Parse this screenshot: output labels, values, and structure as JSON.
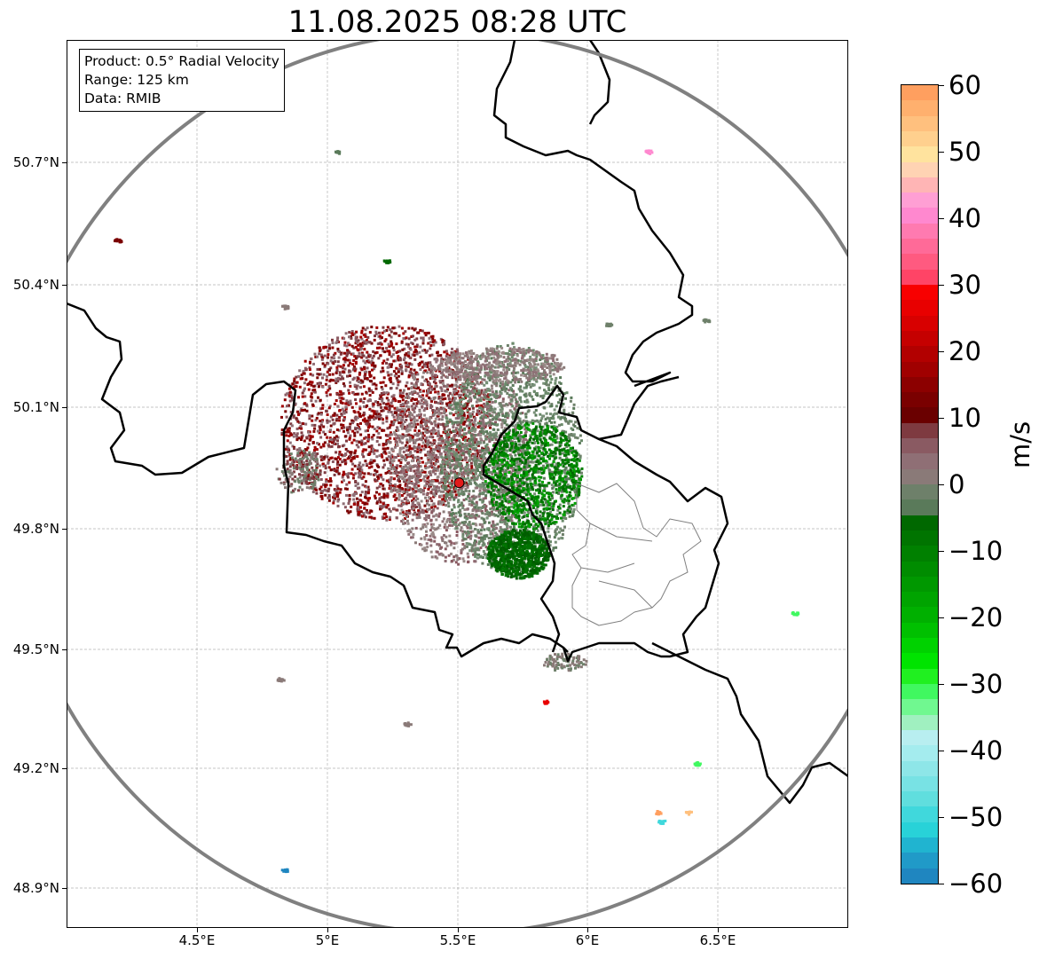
{
  "map": {
    "title": "11.08.2025 08:28 UTC",
    "info": {
      "product": "Product: 0.5° Radial Velocity",
      "range": "Range: 125 km",
      "data": "Data: RMIB"
    },
    "lat_ticks": [
      "50.7°N",
      "50.4°N",
      "50.1°N",
      "49.8°N",
      "49.5°N",
      "49.2°N",
      "48.9°N"
    ],
    "lon_ticks": [
      "4.5°E",
      "5°E",
      "5.5°E",
      "6°E",
      "6.5°E"
    ],
    "radar_site": {
      "lat": 49.914,
      "lon": 5.505
    },
    "colors": {
      "border": "#000000",
      "range_ring": "#808080",
      "grid": "#b3b3b3"
    }
  },
  "colorbar": {
    "label": "m/s",
    "vmin": -60,
    "vmax": 60,
    "tick_labels": [
      "60",
      "50",
      "40",
      "30",
      "20",
      "10",
      "0",
      "−10",
      "−20",
      "−30",
      "−40",
      "−50",
      "−60"
    ],
    "levels_top_to_bottom": [
      "#ff9f5f",
      "#ffb06e",
      "#ffc07e",
      "#ffd08e",
      "#ffe39e",
      "#ffd3b3",
      "#ffb5b5",
      "#ff9fd4",
      "#ff88cf",
      "#ff7ab0",
      "#ff6a98",
      "#ff5a80",
      "#ff4466",
      "#f80000",
      "#e80000",
      "#d80000",
      "#c50000",
      "#b20000",
      "#a00000",
      "#8c0000",
      "#7a0000",
      "#6a0000",
      "#7e3a40",
      "#8a5a62",
      "#8f6f75",
      "#8a7a78",
      "#6e806a",
      "#5a7a5a",
      "#006800",
      "#007400",
      "#008000",
      "#008c00",
      "#009800",
      "#00a400",
      "#00b000",
      "#00c000",
      "#00d200",
      "#00e400",
      "#20f020",
      "#40f860",
      "#70f890",
      "#a0f0c0",
      "#b8eef0",
      "#a4ecee",
      "#8ee6e8",
      "#78e2e4",
      "#60dede",
      "#40d8dc",
      "#28d2d8",
      "#20b4d0",
      "#209ac8",
      "#1f86c0"
    ]
  }
}
